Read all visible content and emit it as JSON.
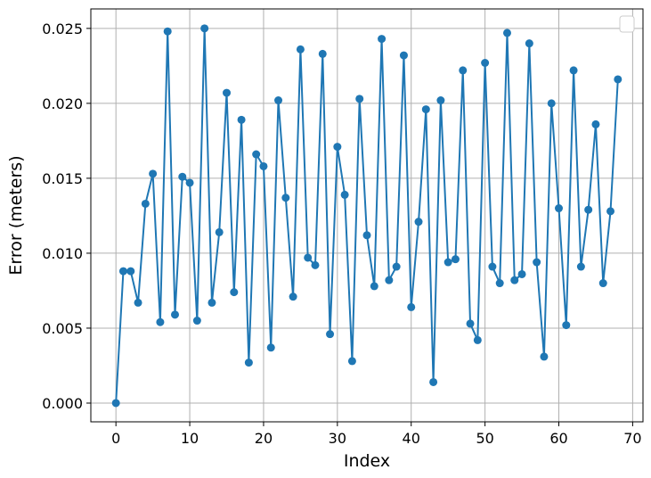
{
  "chart_data": {
    "type": "line",
    "title": "",
    "xlabel": "Index",
    "ylabel": "Error (meters)",
    "xlim": [
      -3.4,
      71.4
    ],
    "ylim": [
      -0.00125,
      0.0263
    ],
    "xticks": [
      0,
      10,
      20,
      30,
      40,
      50,
      60,
      70
    ],
    "xtick_labels": [
      "0",
      "10",
      "20",
      "30",
      "40",
      "50",
      "60",
      "70"
    ],
    "yticks": [
      0.0,
      0.005,
      0.01,
      0.015,
      0.02,
      0.025
    ],
    "ytick_labels": [
      "0.000",
      "0.005",
      "0.010",
      "0.015",
      "0.020",
      "0.025"
    ],
    "grid": true,
    "legend": "top-right (empty)",
    "color": "#1f77b4",
    "marker": "circle",
    "x": [
      0,
      1,
      2,
      3,
      4,
      5,
      6,
      7,
      8,
      9,
      10,
      11,
      12,
      13,
      14,
      15,
      16,
      17,
      18,
      19,
      20,
      21,
      22,
      23,
      24,
      25,
      26,
      27,
      28,
      29,
      30,
      31,
      32,
      33,
      34,
      35,
      36,
      37,
      38,
      39,
      40,
      41,
      42,
      43,
      44,
      45,
      46,
      47,
      48,
      49,
      50,
      51,
      52,
      53,
      54,
      55,
      56,
      57,
      58,
      59,
      60,
      61,
      62,
      63,
      64,
      65,
      66,
      67,
      68
    ],
    "y": [
      0.0,
      0.0088,
      0.0088,
      0.0067,
      0.0133,
      0.0153,
      0.0054,
      0.0248,
      0.0059,
      0.0151,
      0.0147,
      0.0055,
      0.025,
      0.0067,
      0.0114,
      0.0207,
      0.0074,
      0.0189,
      0.0027,
      0.0166,
      0.0158,
      0.0037,
      0.0202,
      0.0137,
      0.0071,
      0.0236,
      0.0097,
      0.0092,
      0.0233,
      0.0046,
      0.0171,
      0.0139,
      0.0028,
      0.0203,
      0.0112,
      0.0078,
      0.0243,
      0.0082,
      0.0091,
      0.0232,
      0.0064,
      0.0121,
      0.0196,
      0.0014,
      0.0202,
      0.0094,
      0.0096,
      0.0222,
      0.0053,
      0.0042,
      0.0227,
      0.0091,
      0.008,
      0.0247,
      0.0082,
      0.0086,
      0.024,
      0.0094,
      0.0031,
      0.02,
      0.013,
      0.0052,
      0.0222,
      0.0091,
      0.0129,
      0.0186,
      0.008,
      0.0128,
      0.0216
    ]
  }
}
